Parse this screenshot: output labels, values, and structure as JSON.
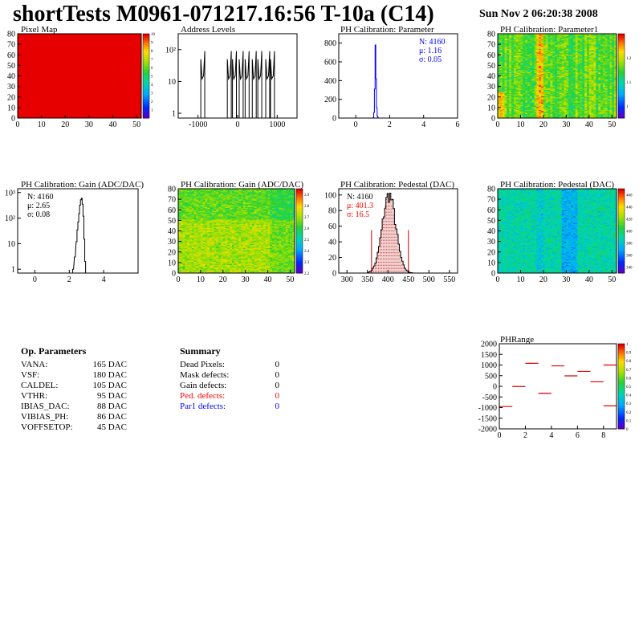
{
  "header": {
    "title": "shortTests M0961-071217.16:56 T-10a (C14)",
    "date": "Sun Nov  2 06:20:38 2008"
  },
  "panels": {
    "pixel_map": {
      "title": "Pixel Map",
      "xticks": [
        "0",
        "10",
        "20",
        "30",
        "40",
        "50"
      ],
      "yticks": [
        "0",
        "10",
        "20",
        "30",
        "40",
        "50",
        "60",
        "70",
        "80"
      ],
      "zticks": [
        "10",
        "9",
        "8",
        "7",
        "6",
        "5",
        "4",
        "3",
        "2",
        "1"
      ]
    },
    "address_levels": {
      "title": "Address Levels",
      "xticks": [
        "-1000",
        "0",
        "1000"
      ],
      "yticks": [
        "1",
        "10",
        "10²"
      ]
    },
    "ph_param": {
      "title": "PH Calibration: Parameter",
      "xticks": [
        "0",
        "2",
        "4",
        "6"
      ],
      "yticks": [
        "0",
        "200",
        "400",
        "600",
        "800"
      ],
      "stats": [
        "N: 4160",
        "μ: 1.16",
        "σ: 0.05"
      ]
    },
    "ph_param1": {
      "title": "PH Calibration: Parameter1",
      "xticks": [
        "0",
        "10",
        "20",
        "30",
        "40",
        "50"
      ],
      "yticks": [
        "0",
        "10",
        "20",
        "30",
        "40",
        "50",
        "60",
        "70",
        "80"
      ],
      "zticks": [
        "1.2",
        "1.1",
        "1"
      ]
    },
    "gain_hist": {
      "title": "PH Calibration: Gain (ADC/DAC)",
      "xticks": [
        "0",
        "2",
        "4"
      ],
      "yticks": [
        "1",
        "10",
        "10²",
        "10³"
      ],
      "stats": [
        "N: 4160",
        "μ: 2.65",
        "σ: 0.08"
      ]
    },
    "gain_map": {
      "title": "PH Calibration: Gain (ADC/DAC)",
      "xticks": [
        "0",
        "10",
        "20",
        "30",
        "40",
        "50"
      ],
      "yticks": [
        "0",
        "10",
        "20",
        "30",
        "40",
        "50",
        "60",
        "70",
        "80"
      ],
      "zticks": [
        "2.9",
        "2.8",
        "2.7",
        "2.6",
        "2.5",
        "2.4",
        "2.3",
        "2.2"
      ]
    },
    "ped_hist": {
      "title": "PH Calibration: Pedestal (DAC)",
      "xticks": [
        "300",
        "350",
        "400",
        "450",
        "500",
        "550"
      ],
      "yticks": [
        "0",
        "20",
        "40",
        "60",
        "80",
        "100"
      ],
      "stats": [
        "N: 4160",
        "μ: 401.3",
        "σ: 16.5"
      ]
    },
    "ped_map": {
      "title": "PH Calibration: Pedestal (DAC)",
      "xticks": [
        "0",
        "10",
        "20",
        "30",
        "40",
        "50"
      ],
      "yticks": [
        "0",
        "10",
        "20",
        "30",
        "40",
        "50",
        "60",
        "70",
        "80"
      ],
      "zticks": [
        "460",
        "440",
        "420",
        "400",
        "380",
        "360",
        "340"
      ]
    },
    "phrange": {
      "title": "PHRange",
      "xticks": [
        "0",
        "2",
        "4",
        "6",
        "8"
      ],
      "yticks": [
        "2000",
        "1500",
        "1000",
        "500",
        "0",
        "-500",
        "-1000",
        "-1500",
        "-2000"
      ],
      "zticks": [
        "1",
        "0.9",
        "0.8",
        "0.7",
        "0.6",
        "0.5",
        "0.4",
        "0.3",
        "0.2",
        "0.1",
        "0"
      ]
    }
  },
  "op_params": {
    "title": "Op. Parameters",
    "rows": [
      {
        "name": "VANA:",
        "value": "165 DAC"
      },
      {
        "name": "VSF:",
        "value": "180 DAC"
      },
      {
        "name": "CALDEL:",
        "value": "105 DAC"
      },
      {
        "name": "VTHR:",
        "value": "95 DAC"
      },
      {
        "name": "IBIAS_DAC:",
        "value": "88 DAC"
      },
      {
        "name": "VIBIAS_PH:",
        "value": "86 DAC"
      },
      {
        "name": "VOFFSETOP:",
        "value": "45 DAC"
      }
    ]
  },
  "summary": {
    "title": "Summary",
    "rows": [
      {
        "name": "Dead Pixels:",
        "value": "0",
        "color": "#000000"
      },
      {
        "name": "Mask defects:",
        "value": "0",
        "color": "#000000"
      },
      {
        "name": "Gain defects:",
        "value": "0",
        "color": "#000000"
      },
      {
        "name": "Ped. defects:",
        "value": "0",
        "color": "#ff0000"
      },
      {
        "name": "Par1 defects:",
        "value": "0",
        "color": "#0000ff"
      }
    ]
  },
  "chart_data": [
    {
      "type": "heatmap",
      "title": "Pixel Map",
      "x_range": [
        0,
        52
      ],
      "y_range": [
        0,
        80
      ],
      "z_range": [
        0,
        10
      ],
      "fill": "uniform at maximum (10)"
    },
    {
      "type": "bar",
      "title": "Address Levels",
      "x_range": [
        -1500,
        1500
      ],
      "log_y": true,
      "peaks_x": [
        -880,
        -210,
        -80,
        90,
        240,
        420,
        560,
        760,
        880
      ]
    },
    {
      "type": "bar",
      "title": "PH Calibration: Parameter",
      "x_range": [
        -1,
        6
      ],
      "y_range": [
        0,
        900
      ],
      "bins": [
        [
          1.02,
          5
        ],
        [
          1.06,
          60
        ],
        [
          1.1,
          310
        ],
        [
          1.14,
          780
        ],
        [
          1.18,
          420
        ],
        [
          1.22,
          110
        ],
        [
          1.26,
          20
        ],
        [
          1.3,
          3
        ]
      ]
    },
    {
      "type": "heatmap",
      "title": "PH Calibration: Parameter1",
      "x_range": [
        0,
        52
      ],
      "y_range": [
        0,
        80
      ],
      "z_range": [
        0.95,
        1.3
      ]
    },
    {
      "type": "bar",
      "title": "PH Calibration: Gain (ADC/DAC)",
      "x_range": [
        -1,
        6
      ],
      "log_y": true,
      "bins": [
        [
          2.2,
          1
        ],
        [
          2.3,
          3
        ],
        [
          2.4,
          12
        ],
        [
          2.45,
          35
        ],
        [
          2.5,
          70
        ],
        [
          2.55,
          150
        ],
        [
          2.6,
          320
        ],
        [
          2.65,
          520
        ],
        [
          2.7,
          600
        ],
        [
          2.75,
          350
        ],
        [
          2.8,
          120
        ],
        [
          2.85,
          15
        ],
        [
          2.9,
          2
        ]
      ]
    },
    {
      "type": "heatmap",
      "title": "PH Calibration: Gain (ADC/DAC)",
      "x_range": [
        0,
        52
      ],
      "y_range": [
        0,
        80
      ],
      "z_range": [
        2.2,
        2.95
      ]
    },
    {
      "type": "bar",
      "title": "PH Calibration: Pedestal (DAC)",
      "x_range": [
        280,
        570
      ],
      "y_range": [
        0,
        108
      ],
      "mean": 401.3,
      "sigma": 16.5,
      "n": 4160,
      "peak": 100,
      "cut_lines_x": [
        360,
        450
      ]
    },
    {
      "type": "heatmap",
      "title": "PH Calibration: Pedestal (DAC)",
      "x_range": [
        0,
        52
      ],
      "y_range": [
        0,
        80
      ],
      "z_range": [
        330,
        470
      ]
    },
    {
      "type": "scatter",
      "title": "PHRange",
      "x_range": [
        0,
        9
      ],
      "y_range": [
        -2000,
        2000
      ],
      "points": [
        [
          0.5,
          -950
        ],
        [
          1.5,
          -10
        ],
        [
          2.5,
          1080
        ],
        [
          3.5,
          -330
        ],
        [
          4.5,
          960
        ],
        [
          5.5,
          490
        ],
        [
          6.5,
          700
        ],
        [
          7.5,
          210
        ],
        [
          8.5,
          1000
        ],
        [
          8.5,
          -920
        ]
      ]
    }
  ]
}
